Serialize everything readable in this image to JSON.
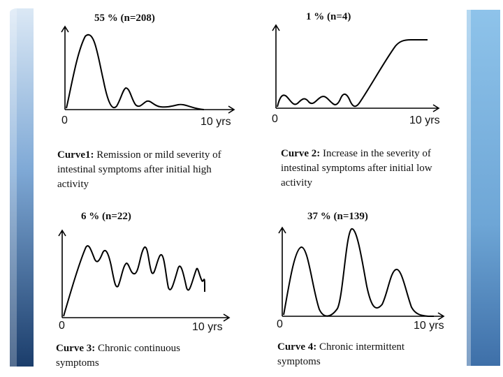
{
  "slide": {
    "accent_light": "#c9dcf0",
    "accent_mid": "#7fa9d6",
    "accent_dark": "#1b3d6b",
    "right_accent": "#8ec3ea"
  },
  "panels": [
    {
      "title": "55 % (n=208)",
      "axis_start": "0",
      "axis_end": "10 yrs",
      "caption_bold": "Curve1:",
      "caption_text": " Remission or mild severity of intestinal symptoms after initial high activity"
    },
    {
      "title": "1 % (n=4)",
      "axis_start": "0",
      "axis_end": "10 yrs",
      "caption_bold": "Curve 2:",
      "caption_text": " Increase in the severity of intestinal symptoms after initial low activity"
    },
    {
      "title": "6 % (n=22)",
      "axis_start": "0",
      "axis_end": "10 yrs",
      "caption_bold": "Curve 3:",
      "caption_text": " Chronic continuous symptoms"
    },
    {
      "title": "37 % (n=139)",
      "axis_start": "0",
      "axis_end": "10 yrs",
      "caption_bold": "Curve 4:",
      "caption_text": " Chronic intermittent symptoms"
    }
  ]
}
